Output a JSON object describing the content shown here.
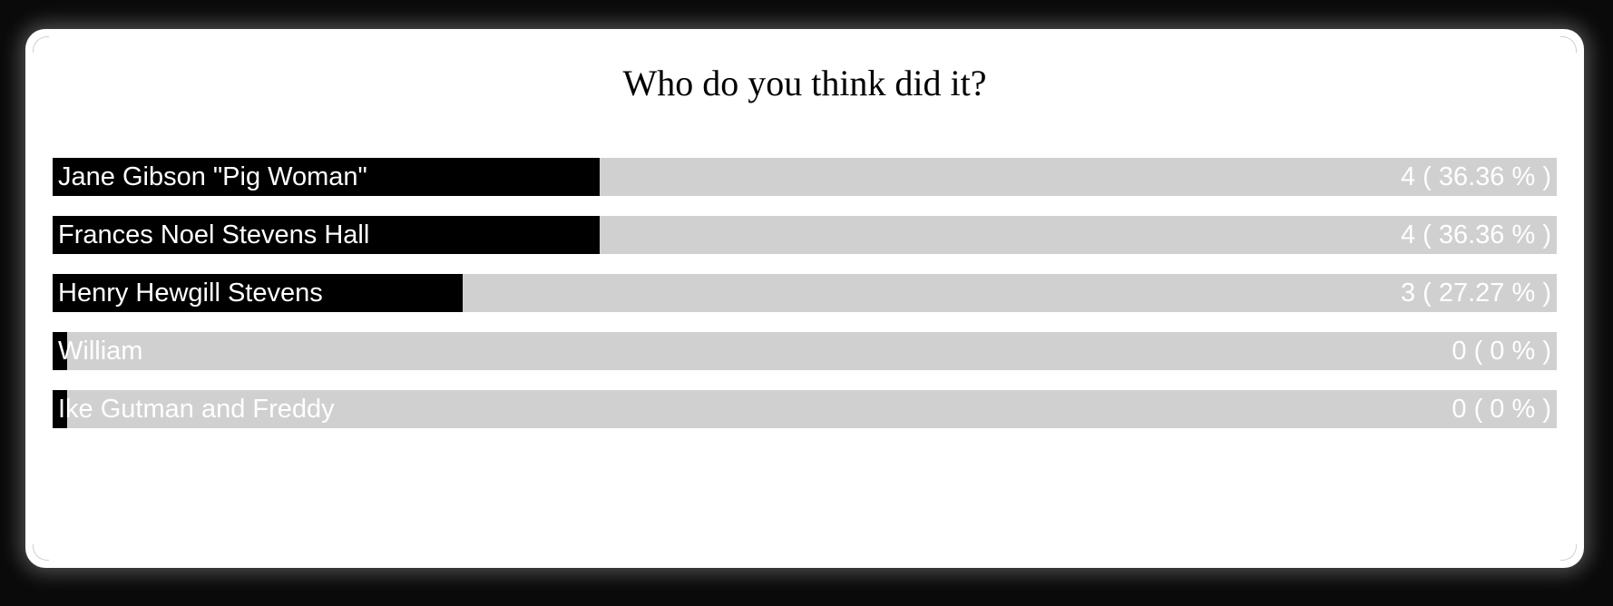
{
  "poll": {
    "title": "Who do you think did it?",
    "options": [
      {
        "label": "Jane Gibson \"Pig Woman\"",
        "votes_text": "4 ( 36.36 % )",
        "votes": 4,
        "percent": 36.36
      },
      {
        "label": "Frances Noel Stevens Hall",
        "votes_text": "4 ( 36.36 % )",
        "votes": 4,
        "percent": 36.36
      },
      {
        "label": "Henry Hewgill Stevens",
        "votes_text": "3 ( 27.27 % )",
        "votes": 3,
        "percent": 27.27
      },
      {
        "label": "William",
        "votes_text": "0 ( 0 % )",
        "votes": 0,
        "percent": 0
      },
      {
        "label": "Ike Gutman and Freddy",
        "votes_text": "0 ( 0 % )",
        "votes": 0,
        "percent": 0
      }
    ]
  },
  "colors": {
    "fill": "#000000",
    "track": "#d0d0d0",
    "text": "#ffffff",
    "card": "#ffffff",
    "background": "#0a0a0a"
  }
}
